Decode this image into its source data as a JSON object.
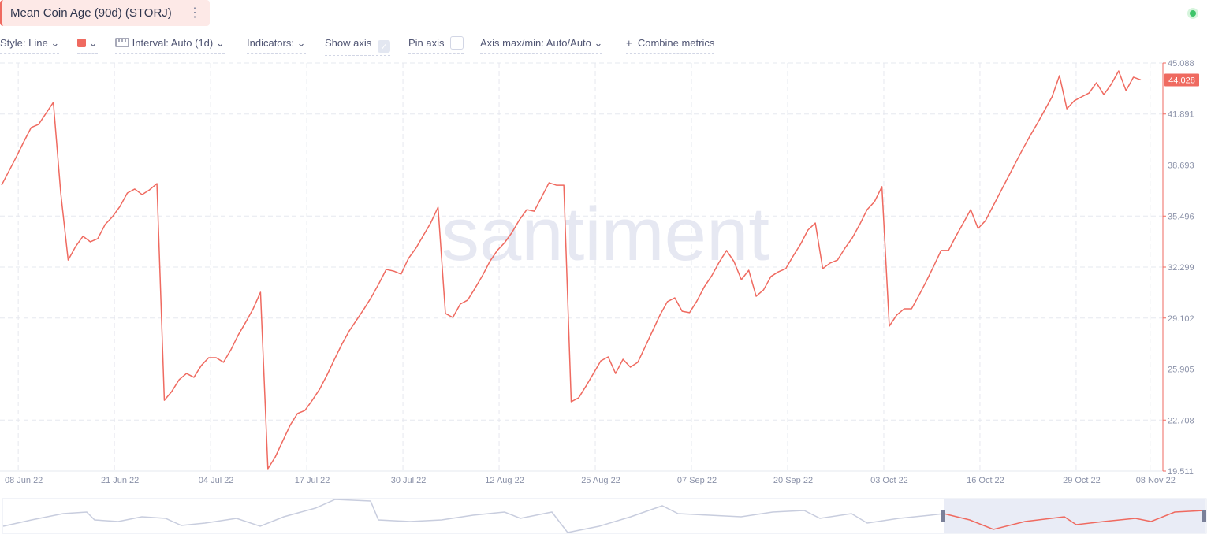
{
  "header": {
    "title": "Mean Coin Age (90d) (STORJ)"
  },
  "toolbar": {
    "style": "Style: Line",
    "interval": "Interval: Auto (1d)",
    "indicators": "Indicators:",
    "show_axis": "Show axis",
    "pin_axis": "Pin axis",
    "axis_range": "Axis max/min: Auto/Auto",
    "combine": "Combine metrics"
  },
  "chart_data": {
    "type": "line",
    "watermark": "santiment",
    "color": "#ef6a60",
    "grid": true,
    "y_axis_side": "right",
    "x": [
      "2022-06-05",
      "2022-06-06",
      "2022-06-07",
      "2022-06-08",
      "2022-06-09",
      "2022-06-10",
      "2022-06-11",
      "2022-06-12",
      "2022-06-13",
      "2022-06-14",
      "2022-06-15",
      "2022-06-16",
      "2022-06-17",
      "2022-06-18",
      "2022-06-19",
      "2022-06-20",
      "2022-06-21",
      "2022-06-22",
      "2022-06-23",
      "2022-06-24",
      "2022-06-25",
      "2022-06-26",
      "2022-06-27",
      "2022-06-28",
      "2022-06-29",
      "2022-06-30",
      "2022-07-01",
      "2022-07-02",
      "2022-07-03",
      "2022-07-04",
      "2022-07-05",
      "2022-07-06",
      "2022-07-07",
      "2022-07-08",
      "2022-07-09",
      "2022-07-10",
      "2022-07-11",
      "2022-07-12",
      "2022-07-13",
      "2022-07-14",
      "2022-07-15",
      "2022-07-16",
      "2022-07-17",
      "2022-07-18",
      "2022-07-19",
      "2022-07-20",
      "2022-07-21",
      "2022-07-22",
      "2022-07-23",
      "2022-07-24",
      "2022-07-25",
      "2022-07-26",
      "2022-07-27",
      "2022-07-28",
      "2022-07-29",
      "2022-07-30",
      "2022-07-31",
      "2022-08-01",
      "2022-08-02",
      "2022-08-03",
      "2022-08-04",
      "2022-08-05",
      "2022-08-06",
      "2022-08-07",
      "2022-08-08",
      "2022-08-09",
      "2022-08-10",
      "2022-08-11",
      "2022-08-12",
      "2022-08-13",
      "2022-08-14",
      "2022-08-15",
      "2022-08-16",
      "2022-08-17",
      "2022-08-18",
      "2022-08-19",
      "2022-08-20",
      "2022-08-21",
      "2022-08-22",
      "2022-08-23",
      "2022-08-24",
      "2022-08-25",
      "2022-08-26",
      "2022-08-27",
      "2022-08-28",
      "2022-08-29",
      "2022-08-30",
      "2022-08-31",
      "2022-09-01",
      "2022-09-02",
      "2022-09-03",
      "2022-09-04",
      "2022-09-05",
      "2022-09-06",
      "2022-09-07",
      "2022-09-08",
      "2022-09-09",
      "2022-09-10",
      "2022-09-11",
      "2022-09-12",
      "2022-09-13",
      "2022-09-14",
      "2022-09-15",
      "2022-09-16",
      "2022-09-17",
      "2022-09-18",
      "2022-09-19",
      "2022-09-20",
      "2022-09-21",
      "2022-09-22",
      "2022-09-23",
      "2022-09-24",
      "2022-09-25",
      "2022-09-26",
      "2022-09-27",
      "2022-09-28",
      "2022-09-29",
      "2022-09-30",
      "2022-10-01",
      "2022-10-02",
      "2022-10-03",
      "2022-10-04",
      "2022-10-05",
      "2022-10-06",
      "2022-10-07",
      "2022-10-08",
      "2022-10-09",
      "2022-10-10",
      "2022-10-11",
      "2022-10-12",
      "2022-10-13",
      "2022-10-14",
      "2022-10-15",
      "2022-10-16",
      "2022-10-17",
      "2022-10-18",
      "2022-10-19",
      "2022-10-20",
      "2022-10-21",
      "2022-10-22",
      "2022-10-23",
      "2022-10-24",
      "2022-10-25",
      "2022-10-26",
      "2022-10-27",
      "2022-10-28",
      "2022-10-29",
      "2022-10-30",
      "2022-10-31",
      "2022-11-01",
      "2022-11-02",
      "2022-11-03",
      "2022-11-04",
      "2022-11-05",
      "2022-11-06"
    ],
    "values": [
      37.43,
      38.32,
      39.21,
      40.15,
      41.04,
      41.24,
      41.93,
      42.62,
      36.94,
      32.74,
      33.58,
      34.23,
      33.88,
      34.08,
      34.97,
      35.46,
      36.1,
      36.94,
      37.19,
      36.84,
      37.14,
      37.53,
      23.95,
      24.5,
      25.24,
      25.63,
      25.39,
      26.13,
      26.62,
      26.62,
      26.33,
      27.12,
      28.05,
      28.84,
      29.68,
      30.72,
      19.66,
      20.4,
      21.39,
      22.38,
      23.12,
      23.31,
      23.95,
      24.65,
      25.54,
      26.52,
      27.46,
      28.3,
      28.99,
      29.68,
      30.42,
      31.26,
      32.15,
      32.05,
      31.86,
      32.84,
      33.48,
      34.27,
      35.06,
      36.05,
      29.39,
      29.14,
      29.98,
      30.23,
      30.97,
      31.76,
      32.65,
      33.34,
      33.83,
      34.47,
      35.26,
      35.9,
      35.8,
      36.69,
      37.58,
      37.43,
      37.43,
      23.86,
      24.1,
      24.84,
      25.63,
      26.42,
      26.67,
      25.63,
      26.52,
      26.03,
      26.33,
      27.31,
      28.3,
      29.29,
      30.13,
      30.37,
      29.53,
      29.44,
      30.18,
      31.07,
      31.76,
      32.6,
      33.34,
      32.65,
      31.51,
      32.1,
      30.47,
      30.87,
      31.71,
      32.0,
      32.2,
      32.99,
      33.73,
      34.62,
      35.06,
      32.2,
      32.55,
      32.74,
      33.48,
      34.13,
      34.97,
      35.9,
      36.4,
      37.34,
      28.6,
      29.29,
      29.68,
      29.68,
      30.52,
      31.41,
      32.35,
      33.34,
      33.34,
      34.23,
      35.06,
      35.9,
      34.72,
      35.21,
      36.1,
      36.99,
      37.88,
      38.77,
      39.66,
      40.5,
      41.29,
      42.13,
      42.97,
      44.3,
      42.22,
      42.72,
      42.97,
      43.21,
      43.85,
      43.11,
      43.76,
      44.59,
      43.36,
      44.2,
      44.028
    ],
    "xlim": [
      "2022-06-05",
      "2022-11-06"
    ],
    "xticks": [
      {
        "value": "2022-06-08",
        "label": "08 Jun 22"
      },
      {
        "value": "2022-06-21",
        "label": "21 Jun 22"
      },
      {
        "value": "2022-07-04",
        "label": "04 Jul 22"
      },
      {
        "value": "2022-07-17",
        "label": "17 Jul 22"
      },
      {
        "value": "2022-07-30",
        "label": "30 Jul 22"
      },
      {
        "value": "2022-08-12",
        "label": "12 Aug 22"
      },
      {
        "value": "2022-08-25",
        "label": "25 Aug 22"
      },
      {
        "value": "2022-09-07",
        "label": "07 Sep 22"
      },
      {
        "value": "2022-09-20",
        "label": "20 Sep 22"
      },
      {
        "value": "2022-10-03",
        "label": "03 Oct 22"
      },
      {
        "value": "2022-10-16",
        "label": "16 Oct 22"
      },
      {
        "value": "2022-10-29",
        "label": "29 Oct 22"
      },
      {
        "value": "2022-11-08",
        "label": "08 Nov 22"
      }
    ],
    "ylim": [
      19.511,
      45.088
    ],
    "yticks": [
      19.511,
      22.708,
      25.905,
      29.102,
      32.299,
      35.496,
      38.693,
      41.891,
      45.088
    ]
  }
}
